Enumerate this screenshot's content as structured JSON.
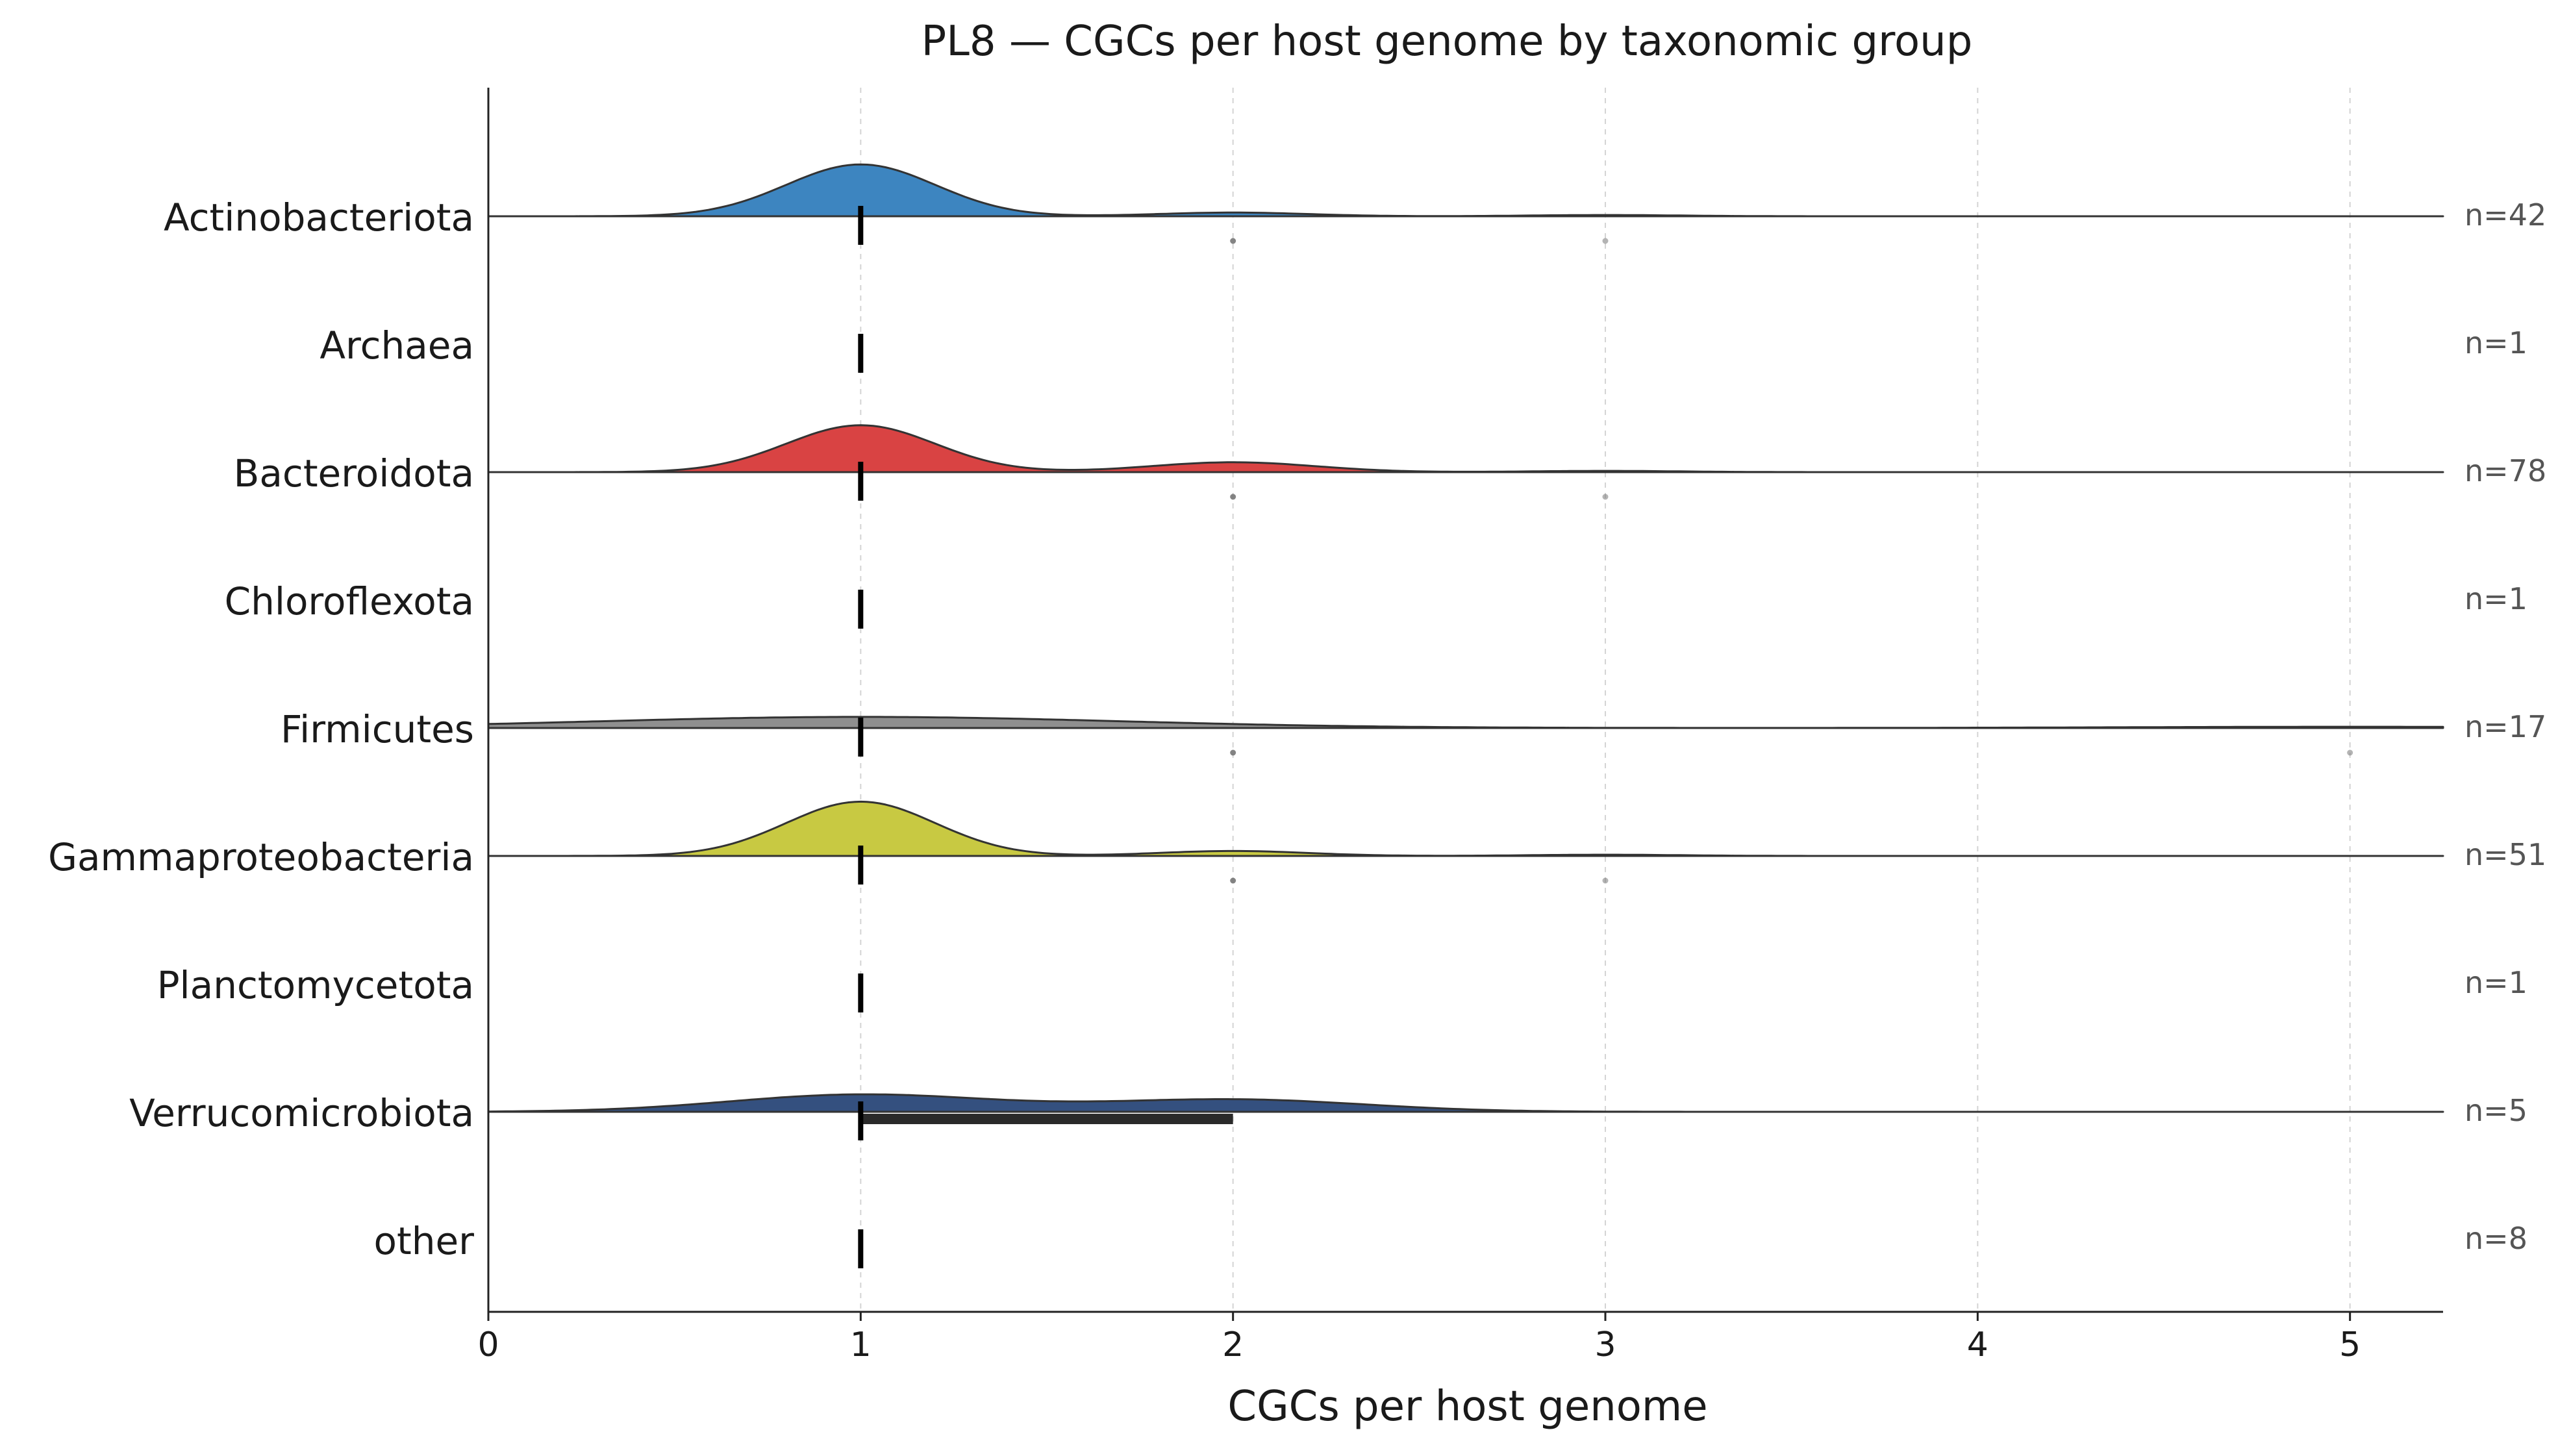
{
  "chart_data": {
    "type": "ridgeline",
    "title": "PL8 — CGCs per host genome by taxonomic group",
    "xlabel": "CGCs per host genome",
    "ylabel": "",
    "xlim": [
      0,
      5.25
    ],
    "xticks": [
      0,
      1,
      2,
      3,
      4,
      5
    ],
    "grid": "vertical dashed at ticks",
    "groups": [
      {
        "name": "Actinobacteriota",
        "n_label": "n=42",
        "color": "#3d85c0",
        "median": 1,
        "q1": 1,
        "q3": 1,
        "outliers": [
          2,
          3
        ],
        "bumps": [
          {
            "mu": 1,
            "sigma": 0.2,
            "h": 0.42
          },
          {
            "mu": 2,
            "sigma": 0.2,
            "h": 0.03
          },
          {
            "mu": 3,
            "sigma": 0.2,
            "h": 0.01
          }
        ]
      },
      {
        "name": "Archaea",
        "n_label": "n=1",
        "color": "#9a9a9a",
        "median": 1,
        "q1": 1,
        "q3": 1,
        "outliers": [],
        "bumps": []
      },
      {
        "name": "Bacteroidota",
        "n_label": "n=78",
        "color": "#d94343",
        "median": 1,
        "q1": 1,
        "q3": 1,
        "outliers": [
          2,
          3
        ],
        "bumps": [
          {
            "mu": 1,
            "sigma": 0.2,
            "h": 0.38
          },
          {
            "mu": 2,
            "sigma": 0.22,
            "h": 0.08
          },
          {
            "mu": 3,
            "sigma": 0.2,
            "h": 0.01
          }
        ]
      },
      {
        "name": "Chloroflexota",
        "n_label": "n=1",
        "color": "#9a9a9a",
        "median": 1,
        "q1": 1,
        "q3": 1,
        "outliers": [],
        "bumps": []
      },
      {
        "name": "Firmicutes",
        "n_label": "n=17",
        "color": "#8f8f8f",
        "median": 1,
        "q1": 1,
        "q3": 1,
        "outliers": [
          2,
          5
        ],
        "bumps": [
          {
            "mu": 1,
            "sigma": 0.7,
            "h": 0.09
          },
          {
            "mu": 5,
            "sigma": 0.6,
            "h": 0.01
          }
        ]
      },
      {
        "name": "Gammaproteobacteria",
        "n_label": "n=51",
        "color": "#c8c942",
        "median": 1,
        "q1": 1,
        "q3": 1,
        "outliers": [
          2,
          3
        ],
        "bumps": [
          {
            "mu": 1,
            "sigma": 0.2,
            "h": 0.44
          },
          {
            "mu": 2,
            "sigma": 0.2,
            "h": 0.04
          },
          {
            "mu": 3,
            "sigma": 0.2,
            "h": 0.01
          }
        ]
      },
      {
        "name": "Planctomycetota",
        "n_label": "n=1",
        "color": "#9a9a9a",
        "median": 1,
        "q1": 1,
        "q3": 1,
        "outliers": [],
        "bumps": []
      },
      {
        "name": "Verrucomicrobiota",
        "n_label": "n=5",
        "color": "#34507f",
        "median": 1,
        "q1": 1,
        "q3": 2,
        "outliers": [],
        "bumps": [
          {
            "mu": 1,
            "sigma": 0.35,
            "h": 0.14
          },
          {
            "mu": 2,
            "sigma": 0.35,
            "h": 0.1
          }
        ]
      },
      {
        "name": "other",
        "n_label": "n=8",
        "color": "#9a9a9a",
        "median": 1,
        "q1": 1,
        "q3": 1,
        "outliers": [],
        "bumps": []
      }
    ]
  }
}
